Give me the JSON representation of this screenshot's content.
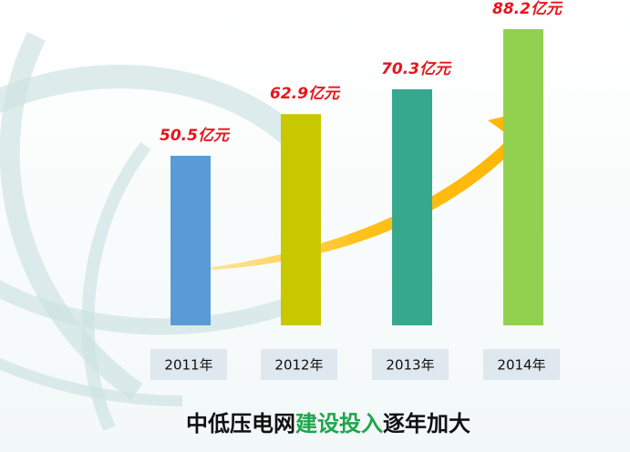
{
  "chart_data": {
    "type": "bar",
    "title": [
      "中低压电网",
      "建设投入",
      "逐年加大"
    ],
    "title_colors": [
      "#111111",
      "#1fa64a",
      "#111111"
    ],
    "categories": [
      "2011年",
      "2012年",
      "2013年",
      "2014年"
    ],
    "values": [
      50.5,
      62.9,
      70.3,
      88.2
    ],
    "value_labels": [
      "50.5亿元",
      "62.9亿元",
      "70.3亿元",
      "88.2亿元"
    ],
    "colors": [
      "#5b9bd5",
      "#c8c800",
      "#36a88e",
      "#92d050"
    ]
  }
}
